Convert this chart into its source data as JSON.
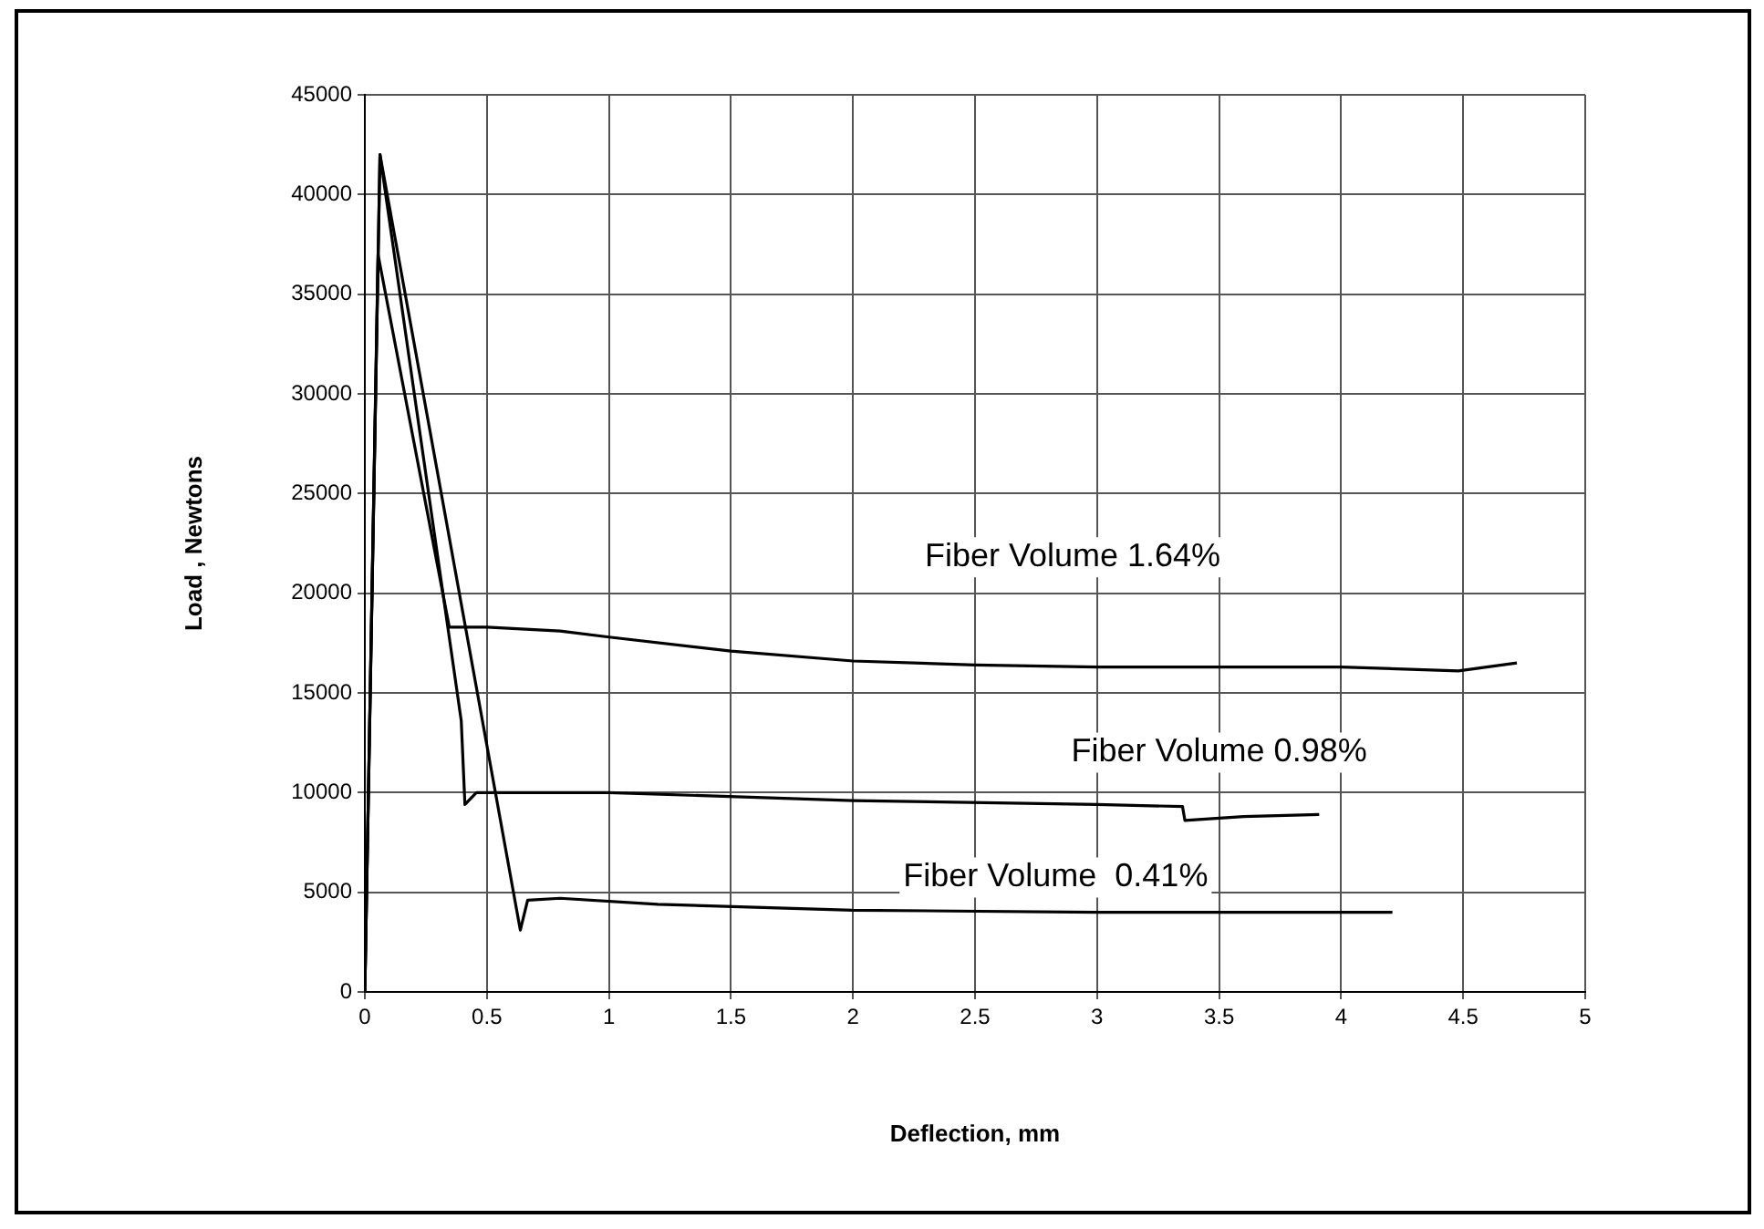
{
  "chart_data": {
    "type": "line",
    "xlabel": "Deflection, mm",
    "ylabel": "Load , Newtons",
    "xlim": [
      0,
      5
    ],
    "xticks": [
      0,
      0.5,
      1,
      1.5,
      2,
      2.5,
      3,
      3.5,
      4,
      4.5,
      5
    ],
    "ylim": [
      0,
      45000
    ],
    "yticks": [
      0,
      5000,
      10000,
      15000,
      20000,
      25000,
      30000,
      35000,
      40000,
      45000
    ],
    "grid": true,
    "legend": false,
    "marker": "none",
    "line_style": "solid",
    "series": [
      {
        "name": "Fiber Volume 1.64%",
        "color": "#000000",
        "x": [
          0,
          0.054,
          0.346,
          0.5,
          0.8,
          1.0,
          1.5,
          2,
          2.5,
          3,
          4,
          4.48,
          4.72
        ],
        "values": [
          0,
          37000,
          18300,
          18300,
          18100,
          17800,
          17100,
          16600,
          16400,
          16300,
          16300,
          16100,
          16500
        ]
      },
      {
        "name": "Fiber Volume 0.98%",
        "color": "#000000",
        "x": [
          0,
          0.062,
          0.395,
          0.41,
          0.457,
          0.6,
          1,
          2,
          3,
          3.35,
          3.36,
          3.6,
          3.91
        ],
        "values": [
          0,
          42000,
          13600,
          9400,
          10000,
          10000,
          10000,
          9600,
          9400,
          9300,
          8600,
          8800,
          8900
        ]
      },
      {
        "name": "Fiber Volume  0.41%",
        "color": "#000000",
        "x": [
          0,
          0.062,
          0.637,
          0.667,
          0.8,
          1.2,
          2,
          3,
          4,
          4.21
        ],
        "values": [
          0,
          42000,
          3100,
          4600,
          4700,
          4400,
          4100,
          4000,
          4000,
          4000
        ]
      }
    ]
  }
}
